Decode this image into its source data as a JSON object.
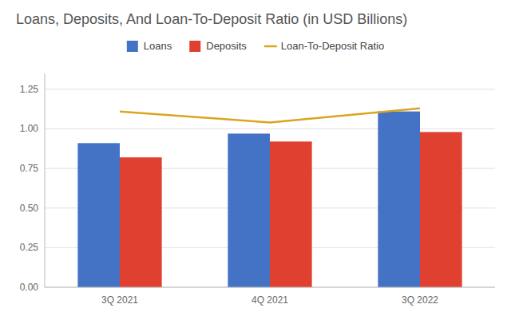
{
  "chart_data": {
    "type": "bar",
    "title": "Loans, Deposits, And Loan-To-Deposit Ratio (in USD Billions)",
    "categories": [
      "3Q 2021",
      "4Q 2021",
      "3Q 2022"
    ],
    "series": [
      {
        "name": "Loans",
        "color": "#4472C4",
        "values": [
          0.91,
          0.97,
          1.11
        ]
      },
      {
        "name": "Deposits",
        "color": "#E04030",
        "values": [
          0.82,
          0.92,
          0.98
        ]
      },
      {
        "name": "Loan-To-Deposit Ratio",
        "type": "line",
        "color": "#DAA520",
        "values": [
          1.11,
          1.04,
          1.13
        ]
      }
    ],
    "ylim": [
      0,
      1.35
    ],
    "yticks": [
      {
        "value": 0.0,
        "label": "0.00"
      },
      0.25,
      {
        "value": 0.5,
        "label": "0.50"
      },
      0.75,
      {
        "value": 1.0,
        "label": "1.00"
      },
      1.25
    ],
    "grid": true,
    "legend": "top"
  }
}
